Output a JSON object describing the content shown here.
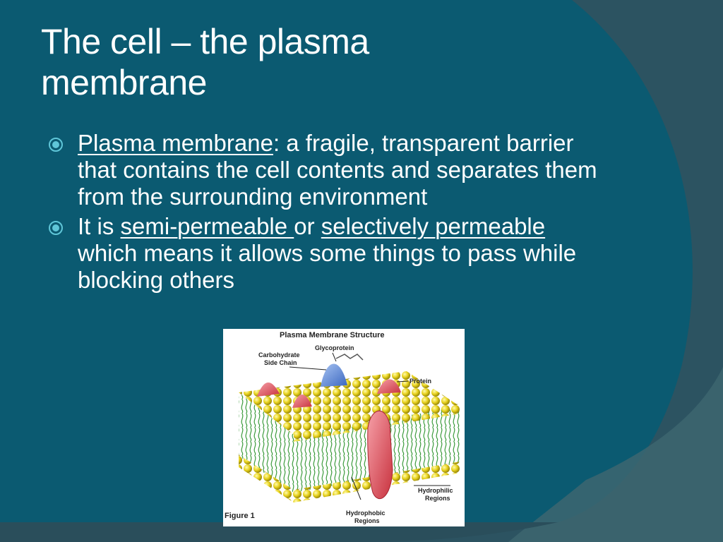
{
  "slide": {
    "title": "The cell – the plasma membrane",
    "bullets": [
      {
        "term": "Plasma membrane",
        "text": ": a fragile, transparent barrier that contains the cell contents and separates them from the surrounding environment"
      },
      {
        "prefix": "It is ",
        "term1": "semi-permeable ",
        "middle": "or ",
        "term2": "selectively permeable",
        "suffix": " which means it allows some things to pass while blocking others"
      }
    ]
  },
  "figure": {
    "title": "Plasma Membrane Structure",
    "labels": {
      "glycoprotein": "Glycoprotein",
      "carbohydrate_line1": "Carbohydrate",
      "carbohydrate_line2": "Side Chain",
      "protein": "Protein",
      "hydrophilic_line1": "Hydrophilic",
      "hydrophilic_line2": "Regions",
      "hydrophobic_line1": "Hydrophobic",
      "hydrophobic_line2": "Regions",
      "caption": "Figure 1"
    }
  },
  "colors": {
    "background_dark": "#2c5361",
    "background_teal": "#0d5a70",
    "text": "#ffffff",
    "bullet_icon": "#5fc6d8"
  }
}
